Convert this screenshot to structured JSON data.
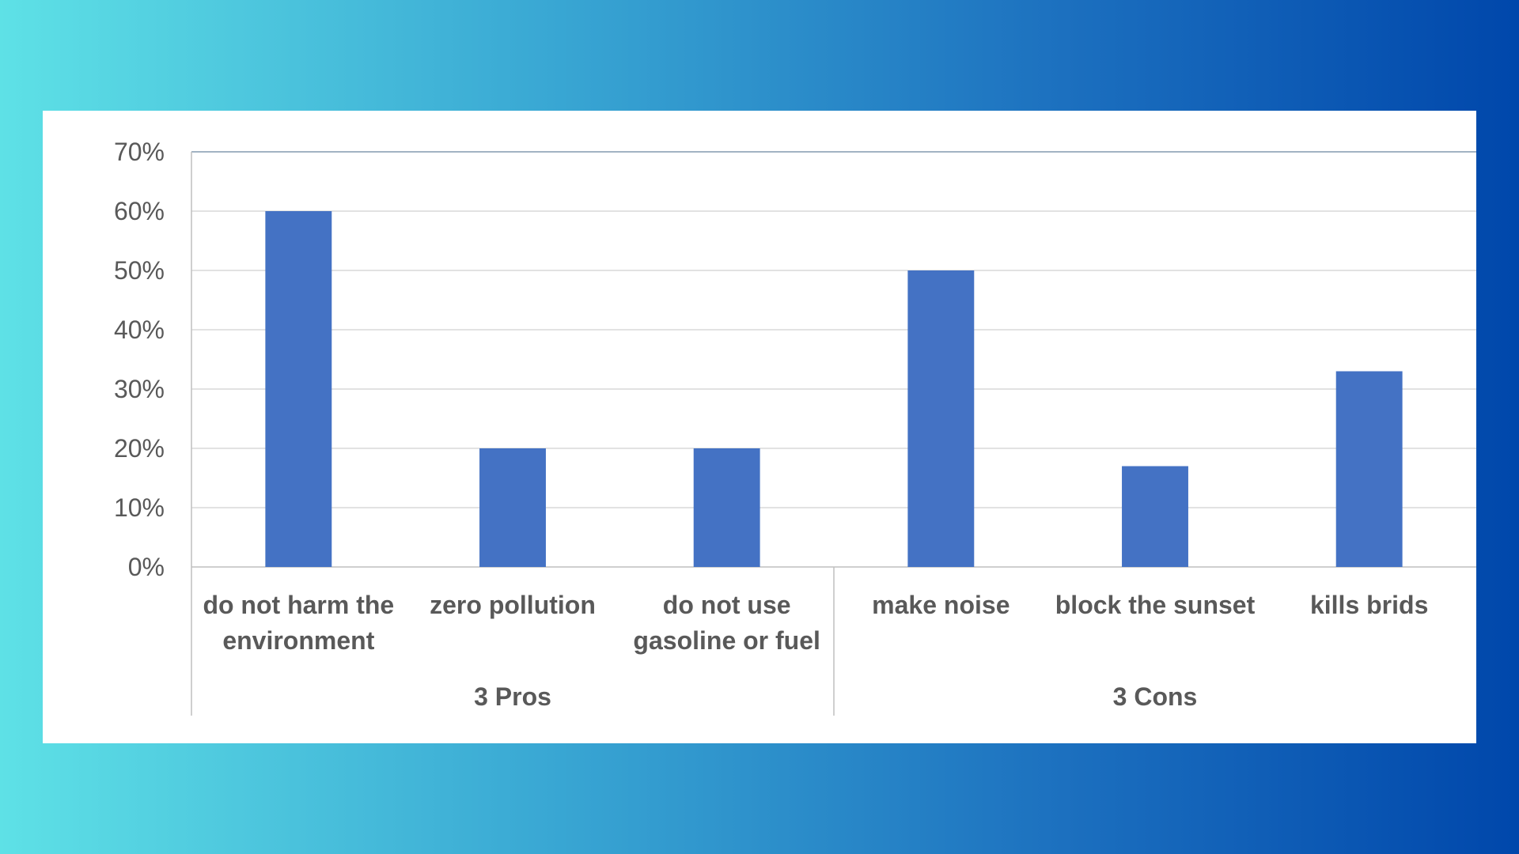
{
  "colors": {
    "bar": "#4472c4",
    "grid": "#d9d9d9",
    "axis": "#bfbfbf",
    "text": "#595959"
  },
  "chart_data": {
    "type": "bar",
    "title": "",
    "xlabel": "",
    "ylabel": "",
    "ylim": [
      0,
      0.7
    ],
    "y_ticks": [
      "0%",
      "10%",
      "20%",
      "30%",
      "40%",
      "50%",
      "60%",
      "70%"
    ],
    "grid": true,
    "categories": [
      [
        "do not harm the",
        "environment"
      ],
      [
        "zero pollution"
      ],
      [
        "do not use",
        "gasoline or fuel"
      ],
      [
        "make noise"
      ],
      [
        "block the sunset"
      ],
      [
        "kills brids"
      ]
    ],
    "groups": [
      {
        "label": "3 Pros",
        "count": 3
      },
      {
        "label": "3 Cons",
        "count": 3
      }
    ],
    "values": [
      0.6,
      0.2,
      0.2,
      0.5,
      0.17,
      0.33
    ]
  }
}
